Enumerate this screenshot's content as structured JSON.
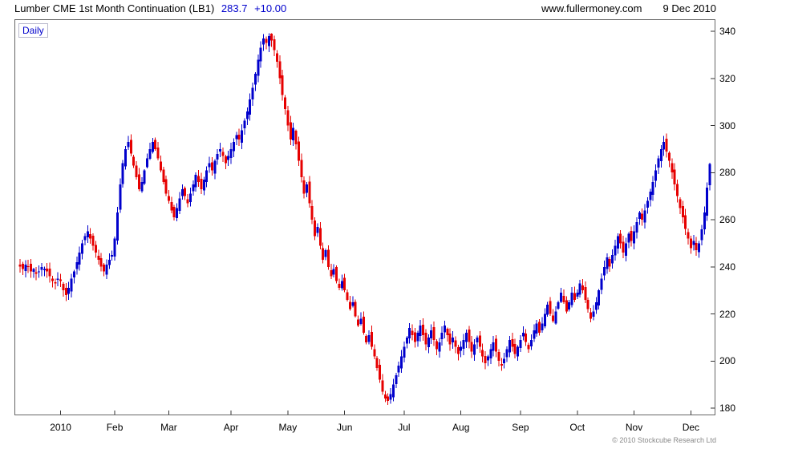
{
  "header": {
    "title": "Lumber CME 1st Month Continuation (LB1)",
    "price": "283.7",
    "change": "+10.00",
    "site": "www.fullermoney.com",
    "date": "9 Dec 2010"
  },
  "panel": {
    "label": "Daily"
  },
  "footer": {
    "copyright": "© 2010 Stockcube Research Ltd"
  },
  "chart_data": {
    "type": "candlestick",
    "title": "Lumber CME 1st Month Continuation (LB1)",
    "timeframe": "Daily",
    "last_price": 283.7,
    "change": 10.0,
    "ylim": [
      180,
      340
    ],
    "y_ticks": [
      180,
      200,
      220,
      240,
      260,
      280,
      300,
      320,
      340
    ],
    "x_ticks": [
      {
        "index": 15,
        "label": "2010"
      },
      {
        "index": 35,
        "label": "Feb"
      },
      {
        "index": 55,
        "label": "Mar"
      },
      {
        "index": 78,
        "label": "Apr"
      },
      {
        "index": 99,
        "label": "May"
      },
      {
        "index": 120,
        "label": "Jun"
      },
      {
        "index": 142,
        "label": "Jul"
      },
      {
        "index": 163,
        "label": "Aug"
      },
      {
        "index": 185,
        "label": "Sep"
      },
      {
        "index": 206,
        "label": "Oct"
      },
      {
        "index": 227,
        "label": "Nov"
      },
      {
        "index": 248,
        "label": "Dec"
      }
    ],
    "first_open": 241,
    "closes": [
      240,
      239,
      241,
      240,
      238,
      239,
      237,
      238,
      240,
      239,
      238,
      236,
      234,
      233,
      235,
      234,
      230,
      228,
      231,
      235,
      238,
      242,
      246,
      250,
      253,
      255,
      252,
      249,
      246,
      243,
      240,
      238,
      241,
      243,
      245,
      252,
      263,
      275,
      284,
      290,
      293,
      288,
      283,
      278,
      273,
      276,
      281,
      286,
      290,
      293,
      290,
      286,
      281,
      276,
      271,
      268,
      264,
      261,
      265,
      269,
      273,
      270,
      267,
      271,
      275,
      279,
      276,
      273,
      277,
      281,
      284,
      281,
      285,
      288,
      290,
      287,
      284,
      287,
      290,
      293,
      296,
      294,
      298,
      302,
      306,
      311,
      316,
      322,
      328,
      333,
      337,
      335,
      338,
      336,
      332,
      327,
      320,
      313,
      307,
      300,
      294,
      299,
      292,
      285,
      278,
      271,
      275,
      267,
      260,
      253,
      257,
      249,
      243,
      247,
      240,
      236,
      239,
      234,
      231,
      234,
      230,
      226,
      222,
      225,
      219,
      215,
      218,
      212,
      208,
      211,
      206,
      202,
      197,
      192,
      187,
      184,
      183,
      186,
      190,
      194,
      198,
      202,
      206,
      210,
      214,
      211,
      208,
      212,
      215,
      211,
      207,
      210,
      213,
      209,
      205,
      208,
      212,
      215,
      211,
      207,
      210,
      206,
      203,
      206,
      209,
      212,
      208,
      204,
      207,
      210,
      206,
      202,
      199,
      202,
      205,
      208,
      204,
      200,
      198,
      201,
      205,
      209,
      206,
      203,
      206,
      209,
      212,
      208,
      205,
      209,
      213,
      216,
      212,
      216,
      220,
      224,
      220,
      217,
      221,
      225,
      229,
      225,
      221,
      225,
      229,
      226,
      229,
      233,
      230,
      226,
      222,
      218,
      221,
      225,
      230,
      235,
      240,
      244,
      240,
      245,
      249,
      253,
      250,
      246,
      250,
      254,
      251,
      255,
      259,
      263,
      260,
      264,
      268,
      272,
      276,
      281,
      286,
      290,
      293,
      289,
      285,
      280,
      275,
      270,
      265,
      261,
      256,
      252,
      248,
      251,
      247,
      250,
      256,
      263,
      273.7,
      283.7
    ],
    "colors": {
      "up": "#0000cc",
      "down": "#e60000",
      "tick": "#333333"
    }
  }
}
